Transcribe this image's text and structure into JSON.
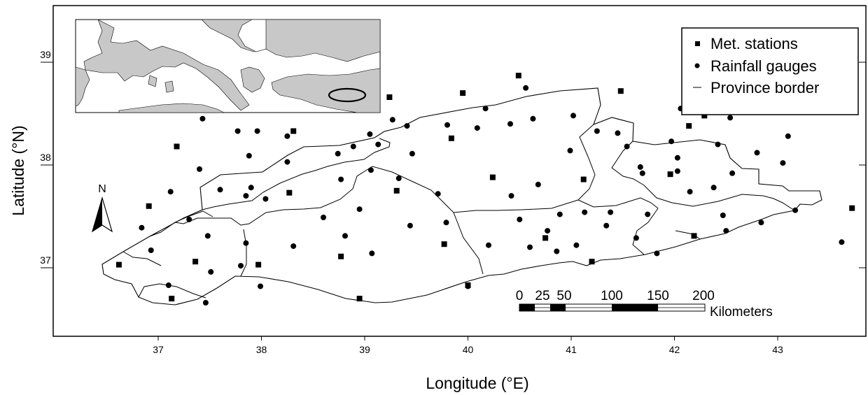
{
  "map": {
    "x_axis": {
      "title": "Longitude (°E)",
      "ticks": [
        {
          "value": 37,
          "label": "37"
        },
        {
          "value": 38,
          "label": "38"
        },
        {
          "value": 39,
          "label": "39"
        },
        {
          "value": 40,
          "label": "40"
        },
        {
          "value": 41,
          "label": "41"
        },
        {
          "value": 42,
          "label": "42"
        },
        {
          "value": 43,
          "label": "43"
        }
      ]
    },
    "y_axis": {
      "title": "Latitude (°N)",
      "ticks": [
        {
          "value": 37,
          "label": "37"
        },
        {
          "value": 38,
          "label": "38"
        },
        {
          "value": 39,
          "label": "39"
        }
      ]
    },
    "legend": {
      "placement": "top-right",
      "items": [
        {
          "symbol": "square",
          "label": "Met. stations"
        },
        {
          "symbol": "circle",
          "label": "Rainfall gauges"
        },
        {
          "symbol": "line",
          "label": "Province border"
        }
      ]
    },
    "north_arrow": {
      "label": "N"
    },
    "scale_bar": {
      "labels": [
        "0",
        "25",
        "50",
        "100",
        "150",
        "200"
      ],
      "unit": "Kilometers"
    },
    "inset": {
      "description_icon": "europe-locator-map",
      "highlight_color": "#000000",
      "land_color": "#c8c8c8"
    },
    "met_stations": [
      [
        36.62,
        37.03
      ],
      [
        37.13,
        36.7
      ],
      [
        37.18,
        38.18
      ],
      [
        36.91,
        37.6
      ],
      [
        37.36,
        37.06
      ],
      [
        37.97,
        37.03
      ],
      [
        38.31,
        38.33
      ],
      [
        38.27,
        37.73
      ],
      [
        39.24,
        38.66
      ],
      [
        39.31,
        37.75
      ],
      [
        38.77,
        37.11
      ],
      [
        38.95,
        36.7
      ],
      [
        39.77,
        37.23
      ],
      [
        39.84,
        38.26
      ],
      [
        39.95,
        38.7
      ],
      [
        40.0,
        36.83
      ],
      [
        40.24,
        37.88
      ],
      [
        40.49,
        38.87
      ],
      [
        40.75,
        37.29
      ],
      [
        41.12,
        37.86
      ],
      [
        41.2,
        37.06
      ],
      [
        41.48,
        38.72
      ],
      [
        41.96,
        37.91
      ],
      [
        42.14,
        38.38
      ],
      [
        42.19,
        37.31
      ],
      [
        42.29,
        38.48
      ],
      [
        43.72,
        37.58
      ]
    ],
    "rain_gauges": [
      [
        36.84,
        37.39
      ],
      [
        36.93,
        37.17
      ],
      [
        37.12,
        37.74
      ],
      [
        37.1,
        36.83
      ],
      [
        37.3,
        37.47
      ],
      [
        37.4,
        37.96
      ],
      [
        37.43,
        38.45
      ],
      [
        37.46,
        36.66
      ],
      [
        37.48,
        37.31
      ],
      [
        37.51,
        36.96
      ],
      [
        37.6,
        37.76
      ],
      [
        37.77,
        38.33
      ],
      [
        37.8,
        37.02
      ],
      [
        37.85,
        37.7
      ],
      [
        37.85,
        37.24
      ],
      [
        37.88,
        38.09
      ],
      [
        37.9,
        37.78
      ],
      [
        37.96,
        38.33
      ],
      [
        37.99,
        36.82
      ],
      [
        38.04,
        37.67
      ],
      [
        38.25,
        38.28
      ],
      [
        38.25,
        38.03
      ],
      [
        38.31,
        37.21
      ],
      [
        38.6,
        37.49
      ],
      [
        38.74,
        38.11
      ],
      [
        38.77,
        37.86
      ],
      [
        38.81,
        37.31
      ],
      [
        38.89,
        38.18
      ],
      [
        38.95,
        37.57
      ],
      [
        39.05,
        38.3
      ],
      [
        39.06,
        37.95
      ],
      [
        39.07,
        37.14
      ],
      [
        39.13,
        38.2
      ],
      [
        39.27,
        38.44
      ],
      [
        39.33,
        37.87
      ],
      [
        39.41,
        38.38
      ],
      [
        39.44,
        37.41
      ],
      [
        39.46,
        38.11
      ],
      [
        39.71,
        37.72
      ],
      [
        39.79,
        37.44
      ],
      [
        39.8,
        38.39
      ],
      [
        40.0,
        36.82
      ],
      [
        40.09,
        38.36
      ],
      [
        40.17,
        38.55
      ],
      [
        40.2,
        37.22
      ],
      [
        40.41,
        38.4
      ],
      [
        40.42,
        37.7
      ],
      [
        40.5,
        37.47
      ],
      [
        40.56,
        38.75
      ],
      [
        40.6,
        37.2
      ],
      [
        40.63,
        38.45
      ],
      [
        40.68,
        37.81
      ],
      [
        40.77,
        37.36
      ],
      [
        40.86,
        37.16
      ],
      [
        40.89,
        37.52
      ],
      [
        40.99,
        38.14
      ],
      [
        41.02,
        38.48
      ],
      [
        41.05,
        37.22
      ],
      [
        41.13,
        37.54
      ],
      [
        41.25,
        38.33
      ],
      [
        41.34,
        37.41
      ],
      [
        41.38,
        37.54
      ],
      [
        41.45,
        38.31
      ],
      [
        41.54,
        38.18
      ],
      [
        41.63,
        37.29
      ],
      [
        41.67,
        37.98
      ],
      [
        41.69,
        37.92
      ],
      [
        41.74,
        37.52
      ],
      [
        41.83,
        37.14
      ],
      [
        41.97,
        38.23
      ],
      [
        42.03,
        38.07
      ],
      [
        42.03,
        37.94
      ],
      [
        42.06,
        38.55
      ],
      [
        42.15,
        37.74
      ],
      [
        42.38,
        37.78
      ],
      [
        42.42,
        38.2
      ],
      [
        42.47,
        37.51
      ],
      [
        42.5,
        37.36
      ],
      [
        42.54,
        38.46
      ],
      [
        42.56,
        37.92
      ],
      [
        42.8,
        38.12
      ],
      [
        42.84,
        37.44
      ],
      [
        43.05,
        38.02
      ],
      [
        43.1,
        38.28
      ],
      [
        43.17,
        37.56
      ],
      [
        43.62,
        37.25
      ]
    ]
  }
}
